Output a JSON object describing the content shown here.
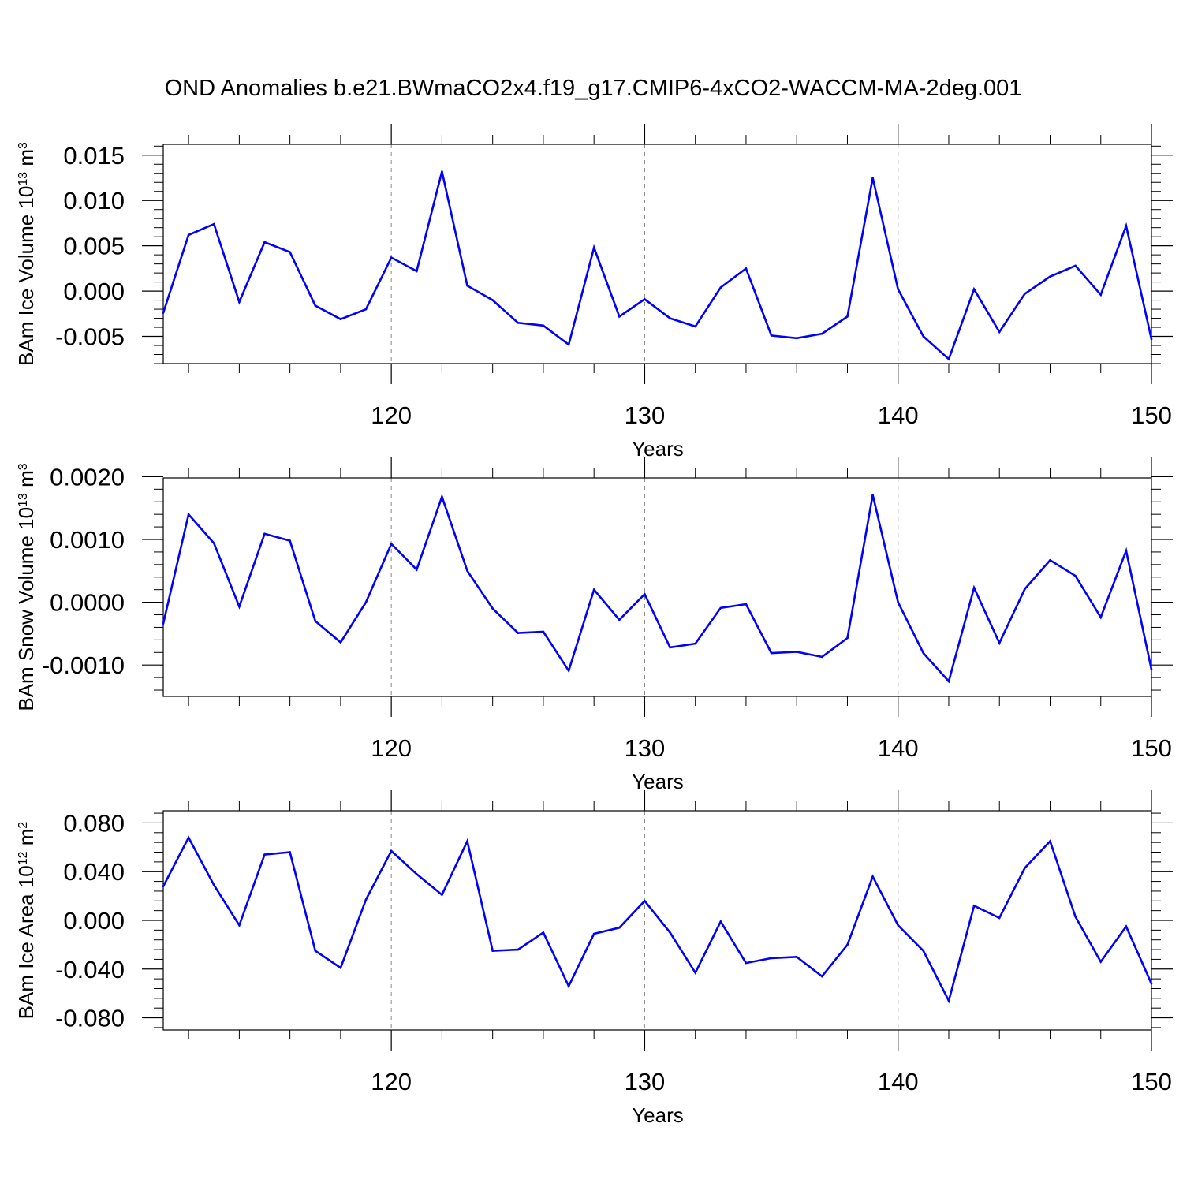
{
  "page_title": "OND Anomalies b.e21.BWmaCO2x4.f19_g17.CMIP6-4xCO2-WACCM-MA-2deg.001",
  "colors": {
    "series": "#0000ff",
    "axis": "#000000",
    "gridline": "#888888"
  },
  "chart_data": [
    {
      "type": "line",
      "title": "OND Anomalies b.e21.BWmaCO2x4.f19_g17.CMIP6-4xCO2-WACCM-MA-2deg.001",
      "xlabel": "Years",
      "ylabel": {
        "text": "BAm Ice Volume 10",
        "exponent": "13",
        "unit": " m",
        "unit_exponent": "3"
      },
      "xlim": [
        111,
        150
      ],
      "ylim": [
        -0.008,
        0.0162
      ],
      "xticks": [
        120,
        130,
        140,
        150
      ],
      "xtick_labels": [
        "120",
        "130",
        "140",
        "150"
      ],
      "yticks": [
        -0.005,
        0.0,
        0.005,
        0.01,
        0.015
      ],
      "ytick_labels": [
        "-0.005",
        "0.000",
        "0.005",
        "0.010",
        "0.015"
      ],
      "vertical_gridlines_at": [
        120,
        130,
        140
      ],
      "x": [
        111,
        112,
        113,
        114,
        115,
        116,
        117,
        118,
        119,
        120,
        121,
        122,
        123,
        124,
        125,
        126,
        127,
        128,
        129,
        130,
        131,
        132,
        133,
        134,
        135,
        136,
        137,
        138,
        139,
        140,
        141,
        142,
        143,
        144,
        145,
        146,
        147,
        148,
        149,
        150
      ],
      "values": [
        -0.0024,
        0.0062,
        0.0074,
        -0.0012,
        0.0054,
        0.0043,
        -0.0016,
        -0.0031,
        -0.002,
        0.0037,
        0.0022,
        0.0132,
        0.0006,
        -0.001,
        -0.0035,
        -0.0038,
        -0.0059,
        0.0048,
        -0.0028,
        -0.0009,
        -0.003,
        -0.0039,
        0.0004,
        0.0025,
        -0.0049,
        -0.0052,
        -0.0047,
        -0.0028,
        0.0125,
        0.0002,
        -0.005,
        -0.0075,
        0.0002,
        -0.0045,
        -0.0003,
        0.0016,
        0.0028,
        -0.0004,
        0.0072,
        -0.0053
      ]
    },
    {
      "type": "line",
      "title": "",
      "xlabel": "Years",
      "ylabel": {
        "text": "BAm Snow Volume 10",
        "exponent": "13",
        "unit": " m",
        "unit_exponent": "3"
      },
      "xlim": [
        111,
        150
      ],
      "ylim": [
        -0.0015,
        0.00198
      ],
      "xticks": [
        120,
        130,
        140,
        150
      ],
      "xtick_labels": [
        "120",
        "130",
        "140",
        "150"
      ],
      "yticks": [
        -0.001,
        0.0,
        0.001,
        0.002
      ],
      "ytick_labels": [
        "-0.0010",
        "0.0000",
        "0.0010",
        "0.0020"
      ],
      "vertical_gridlines_at": [
        120,
        130,
        140
      ],
      "x": [
        111,
        112,
        113,
        114,
        115,
        116,
        117,
        118,
        119,
        120,
        121,
        122,
        123,
        124,
        125,
        126,
        127,
        128,
        129,
        130,
        131,
        132,
        133,
        134,
        135,
        136,
        137,
        138,
        139,
        140,
        141,
        142,
        143,
        144,
        145,
        146,
        147,
        148,
        149,
        150
      ],
      "values": [
        -0.00034,
        0.0014,
        0.00094,
        -7e-05,
        0.00109,
        0.00098,
        -0.0003,
        -0.00064,
        0.0,
        0.00093,
        0.00052,
        0.00168,
        0.0005,
        -0.0001,
        -0.00049,
        -0.00047,
        -0.00109,
        0.0002,
        -0.00028,
        0.00013,
        -0.00072,
        -0.00066,
        -9e-05,
        -3e-05,
        -0.00081,
        -0.00079,
        -0.00087,
        -0.00057,
        0.00171,
        0.0,
        -0.00081,
        -0.00126,
        0.00023,
        -0.00065,
        0.00021,
        0.00067,
        0.00042,
        -0.00024,
        0.00082,
        -0.00107
      ]
    },
    {
      "type": "line",
      "title": "",
      "xlabel": "Years",
      "ylabel": {
        "text": "BAm Ice Area 10",
        "exponent": "12",
        "unit": " m",
        "unit_exponent": "2"
      },
      "xlim": [
        111,
        150
      ],
      "ylim": [
        -0.09,
        0.09
      ],
      "xticks": [
        120,
        130,
        140,
        150
      ],
      "xtick_labels": [
        "120",
        "130",
        "140",
        "150"
      ],
      "yticks": [
        -0.08,
        -0.04,
        0.0,
        0.04,
        0.08
      ],
      "ytick_labels": [
        "-0.080",
        "-0.040",
        "0.000",
        "0.040",
        "0.080"
      ],
      "vertical_gridlines_at": [
        120,
        130,
        140
      ],
      "x": [
        111,
        112,
        113,
        114,
        115,
        116,
        117,
        118,
        119,
        120,
        121,
        122,
        123,
        124,
        125,
        126,
        127,
        128,
        129,
        130,
        131,
        132,
        133,
        134,
        135,
        136,
        137,
        138,
        139,
        140,
        141,
        142,
        143,
        144,
        145,
        146,
        147,
        148,
        149,
        150
      ],
      "values": [
        0.028,
        0.068,
        0.029,
        -0.004,
        0.054,
        0.056,
        -0.025,
        -0.039,
        0.017,
        0.057,
        0.038,
        0.021,
        0.065,
        -0.025,
        -0.024,
        -0.01,
        -0.054,
        -0.011,
        -0.006,
        0.016,
        -0.01,
        -0.043,
        -0.001,
        -0.035,
        -0.031,
        -0.03,
        -0.046,
        -0.02,
        0.036,
        -0.004,
        -0.025,
        -0.066,
        0.012,
        0.002,
        0.043,
        0.065,
        0.003,
        -0.034,
        -0.005,
        -0.052
      ]
    }
  ]
}
